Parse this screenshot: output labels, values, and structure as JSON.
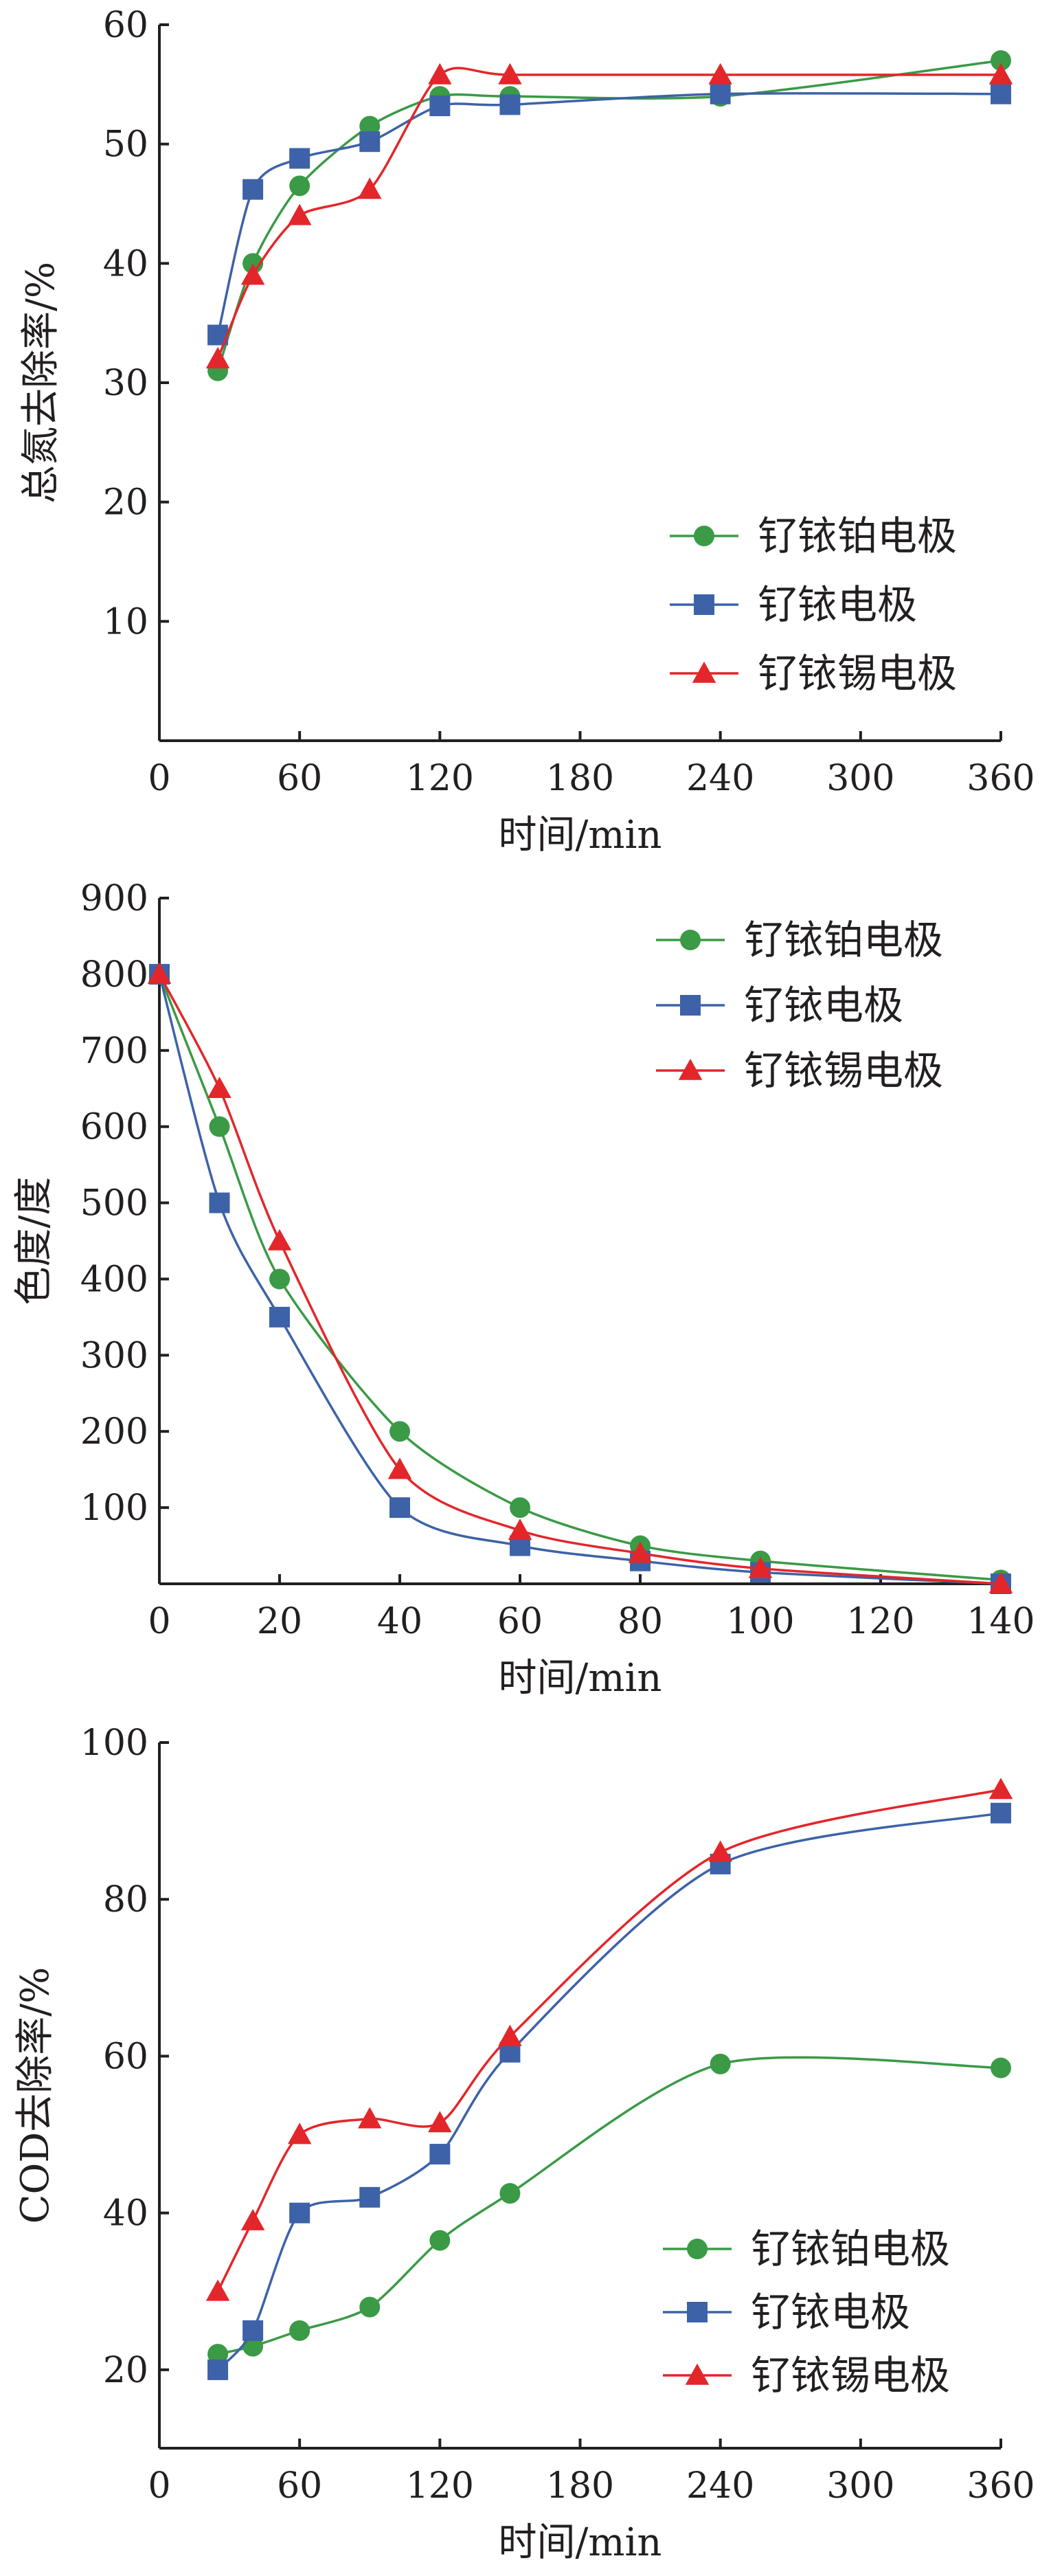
{
  "chart_data": [
    {
      "type": "line",
      "xlabel": "时间/min",
      "ylabel": "总氮去除率/%",
      "xlim": [
        0,
        360
      ],
      "ylim": [
        0,
        60
      ],
      "xticks": [
        "0",
        "60",
        "120",
        "180",
        "240",
        "300",
        "360"
      ],
      "yticks": [
        "10",
        "20",
        "30",
        "40",
        "50",
        "60"
      ],
      "xtick_values": [
        0,
        60,
        120,
        180,
        240,
        300,
        360
      ],
      "ytick_values": [
        10,
        20,
        30,
        40,
        50,
        60
      ],
      "legend_position": "lower-right",
      "series": [
        {
          "name": "钌铱铂电极",
          "color": "#3a9a46",
          "marker": "circle",
          "x": [
            25,
            40,
            60,
            90,
            120,
            150,
            240,
            360
          ],
          "y": [
            31,
            40,
            46.5,
            51.5,
            54,
            54,
            54,
            57
          ]
        },
        {
          "name": "钌铱电极",
          "color": "#3d62a8",
          "marker": "square",
          "x": [
            25,
            40,
            60,
            90,
            120,
            150,
            240,
            360
          ],
          "y": [
            34,
            46.2,
            48.8,
            50.2,
            53.2,
            53.3,
            54.2,
            54.2
          ]
        },
        {
          "name": "钌铱锡电极",
          "color": "#e3262a",
          "marker": "triangle",
          "x": [
            25,
            40,
            60,
            90,
            120,
            150,
            240,
            360
          ],
          "y": [
            32,
            39,
            44,
            46.2,
            55.8,
            55.8,
            55.8,
            55.8
          ]
        }
      ]
    },
    {
      "type": "line",
      "xlabel": "时间/min",
      "ylabel": "色度/度",
      "xlim": [
        0,
        140
      ],
      "ylim": [
        0,
        900
      ],
      "xticks": [
        "0",
        "20",
        "40",
        "60",
        "80",
        "100",
        "120",
        "140"
      ],
      "yticks": [
        "100",
        "200",
        "300",
        "400",
        "500",
        "600",
        "700",
        "800",
        "900"
      ],
      "xtick_values": [
        0,
        20,
        40,
        60,
        80,
        100,
        120,
        140
      ],
      "ytick_values": [
        100,
        200,
        300,
        400,
        500,
        600,
        700,
        800,
        900
      ],
      "legend_position": "top-right",
      "series": [
        {
          "name": "钌铱铂电极",
          "color": "#3a9a46",
          "marker": "circle",
          "x": [
            0,
            10,
            20,
            40,
            60,
            80,
            100,
            140
          ],
          "y": [
            800,
            600,
            400,
            200,
            100,
            50,
            30,
            5
          ]
        },
        {
          "name": "钌铱电极",
          "color": "#3d62a8",
          "marker": "square",
          "x": [
            0,
            10,
            20,
            40,
            60,
            80,
            100,
            140
          ],
          "y": [
            800,
            500,
            350,
            100,
            50,
            30,
            15,
            0
          ]
        },
        {
          "name": "钌铱锡电极",
          "color": "#e3262a",
          "marker": "triangle",
          "x": [
            0,
            10,
            20,
            40,
            60,
            80,
            100,
            140
          ],
          "y": [
            800,
            650,
            450,
            150,
            70,
            40,
            20,
            0
          ]
        }
      ]
    },
    {
      "type": "line",
      "xlabel": "时间/min",
      "ylabel": "COD去除率/%",
      "xlim": [
        0,
        360
      ],
      "ylim": [
        10,
        100
      ],
      "xticks": [
        "0",
        "60",
        "120",
        "180",
        "240",
        "300",
        "360"
      ],
      "yticks": [
        "20",
        "40",
        "60",
        "80",
        "100"
      ],
      "xtick_values": [
        0,
        60,
        120,
        180,
        240,
        300,
        360
      ],
      "ytick_values": [
        20,
        40,
        60,
        80,
        100
      ],
      "legend_position": "lower-right",
      "series": [
        {
          "name": "钌铱铂电极",
          "color": "#3a9a46",
          "marker": "circle",
          "x": [
            25,
            40,
            60,
            90,
            120,
            150,
            240,
            360
          ],
          "y": [
            22,
            23,
            25,
            28,
            36.5,
            42.5,
            59,
            58.5
          ]
        },
        {
          "name": "钌铱电极",
          "color": "#3d62a8",
          "marker": "square",
          "x": [
            25,
            40,
            60,
            90,
            120,
            150,
            240,
            360
          ],
          "y": [
            20,
            25,
            40,
            42,
            47.5,
            60.5,
            84.5,
            91
          ]
        },
        {
          "name": "钌铱锡电极",
          "color": "#e3262a",
          "marker": "triangle",
          "x": [
            25,
            40,
            60,
            90,
            120,
            150,
            240,
            360
          ],
          "y": [
            30,
            39,
            50,
            52,
            51.5,
            62.5,
            86,
            94
          ]
        }
      ]
    }
  ]
}
